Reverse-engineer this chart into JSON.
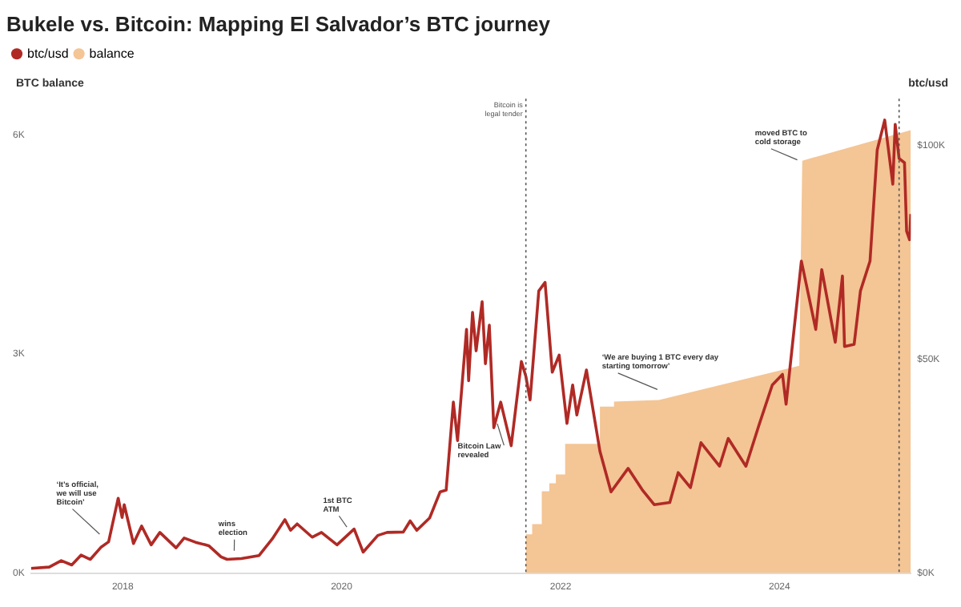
{
  "chart_data": {
    "type": "line",
    "title": "Bukele vs. Bitcoin: Mapping El Salvador’s BTC journey",
    "ylabel": "BTC balance",
    "y2label": "btc/usd",
    "xlim": [
      "2017-03-01",
      "2025-03-14"
    ],
    "xticks": [
      "2018",
      "2020",
      "2022",
      "2024"
    ],
    "ylim": [
      0,
      6.5
    ],
    "yticks": [
      {
        "value": 0,
        "label": "0K"
      },
      {
        "value": 3,
        "label": "3K"
      },
      {
        "value": 6,
        "label": "6K"
      }
    ],
    "y2lim": [
      0,
      111
    ],
    "y2ticks": [
      {
        "value": 0,
        "label": "$0K"
      },
      {
        "value": 50,
        "label": "$50K"
      },
      {
        "value": 100,
        "label": "$100K"
      }
    ],
    "grid": false,
    "legend": "top left",
    "marker": "none",
    "line_style": "solid",
    "series": [
      {
        "name": "btc/usd",
        "type": "line",
        "axis": "y2",
        "color": "#b02a25",
        "x": [
          "2017-03-01",
          "2017-05-01",
          "2017-06-10",
          "2017-07-15",
          "2017-08-15",
          "2017-09-15",
          "2017-10-20",
          "2017-11-15",
          "2017-12-17",
          "2017-12-30",
          "2018-01-06",
          "2018-02-06",
          "2018-03-05",
          "2018-04-06",
          "2018-05-05",
          "2018-06-28",
          "2018-07-25",
          "2018-09-01",
          "2018-10-15",
          "2018-11-25",
          "2018-12-15",
          "2019-02-01",
          "2019-04-01",
          "2019-05-15",
          "2019-06-26",
          "2019-07-15",
          "2019-08-06",
          "2019-09-25",
          "2019-10-26",
          "2019-12-17",
          "2020-02-12",
          "2020-03-13",
          "2020-05-01",
          "2020-06-01",
          "2020-07-25",
          "2020-08-17",
          "2020-09-08",
          "2020-10-21",
          "2020-11-25",
          "2020-12-15",
          "2021-01-08",
          "2021-01-22",
          "2021-02-21",
          "2021-02-28",
          "2021-03-13",
          "2021-03-25",
          "2021-04-14",
          "2021-04-25",
          "2021-05-08",
          "2021-05-23",
          "2021-06-15",
          "2021-07-20",
          "2021-08-23",
          "2021-09-07",
          "2021-09-21",
          "2021-10-20",
          "2021-11-10",
          "2021-12-04",
          "2021-12-27",
          "2022-01-22",
          "2022-02-10",
          "2022-02-24",
          "2022-03-28",
          "2022-05-12",
          "2022-06-18",
          "2022-08-14",
          "2022-09-30",
          "2022-11-09",
          "2022-12-31",
          "2023-01-28",
          "2023-03-10",
          "2023-04-14",
          "2023-06-15",
          "2023-07-14",
          "2023-09-11",
          "2023-10-24",
          "2023-12-08",
          "2024-01-11",
          "2024-01-23",
          "2024-03-14",
          "2024-05-01",
          "2024-05-21",
          "2024-07-05",
          "2024-07-29",
          "2024-08-05",
          "2024-09-06",
          "2024-09-27",
          "2024-10-29",
          "2024-11-22",
          "2024-12-17",
          "2025-01-13",
          "2025-01-21",
          "2025-02-03",
          "2025-02-21",
          "2025-02-28",
          "2025-03-10",
          "2025-03-14"
        ],
        "values": [
          1.1,
          1.4,
          2.9,
          1.9,
          4.2,
          3.2,
          6,
          7.3,
          17.5,
          13,
          16,
          6.9,
          11,
          6.6,
          9.5,
          5.9,
          8.2,
          7.2,
          6.4,
          3.8,
          3.2,
          3.4,
          4.1,
          8,
          12.5,
          10,
          11.5,
          8.4,
          9.5,
          6.6,
          10.3,
          4.9,
          8.8,
          9.5,
          9.6,
          12.2,
          10,
          12.9,
          19,
          19.4,
          40,
          31,
          57,
          45,
          61,
          52,
          63.5,
          49,
          58,
          34,
          40,
          29.8,
          49.5,
          46,
          40.5,
          66,
          68,
          47,
          51,
          35,
          44,
          37,
          47.5,
          28.5,
          19,
          24.5,
          19.5,
          16,
          16.5,
          23.5,
          20,
          30.5,
          25,
          31.5,
          25,
          34.5,
          44,
          46.5,
          39.5,
          73,
          57,
          71,
          54,
          69.5,
          53,
          53.5,
          66,
          73,
          99,
          106,
          91,
          105,
          97,
          96,
          80,
          78,
          84
        ]
      },
      {
        "name": "balance",
        "type": "area",
        "color": "#f4c595",
        "x": [
          "2021-09-07",
          "2021-09-07",
          "2021-09-28",
          "2021-09-28",
          "2021-10-30",
          "2021-10-30",
          "2021-11-24",
          "2021-11-24",
          "2021-12-16",
          "2021-12-16",
          "2022-01-16",
          "2022-01-16",
          "2022-05-12",
          "2022-05-12",
          "2022-06-28",
          "2022-06-28",
          "2022-11-25",
          "2024-03-07",
          "2024-03-17",
          "2025-03-14"
        ],
        "values": [
          0,
          0.53,
          0.53,
          0.67,
          0.67,
          1.12,
          1.12,
          1.23,
          1.23,
          1.35,
          1.35,
          1.77,
          1.77,
          2.28,
          2.28,
          2.35,
          2.37,
          2.84,
          5.65,
          6.07
        ]
      }
    ],
    "ref_lines": [
      {
        "axis": "x",
        "value": "2021-09-07",
        "label": "Bitcoin is legal tender",
        "line_style": "dotted",
        "color": "#555555"
      },
      {
        "axis": "x",
        "value": "2025-02-03",
        "line_style": "dotted",
        "color": "#555555"
      }
    ],
    "annotations": [
      "‘It’s official, we will use Bitcoin’",
      "wins election",
      "1st BTC ATM",
      "Bitcoin Law revealed",
      "‘We are buying 1 BTC every day starting tomorrow’",
      "moved BTC to cold storage"
    ]
  }
}
